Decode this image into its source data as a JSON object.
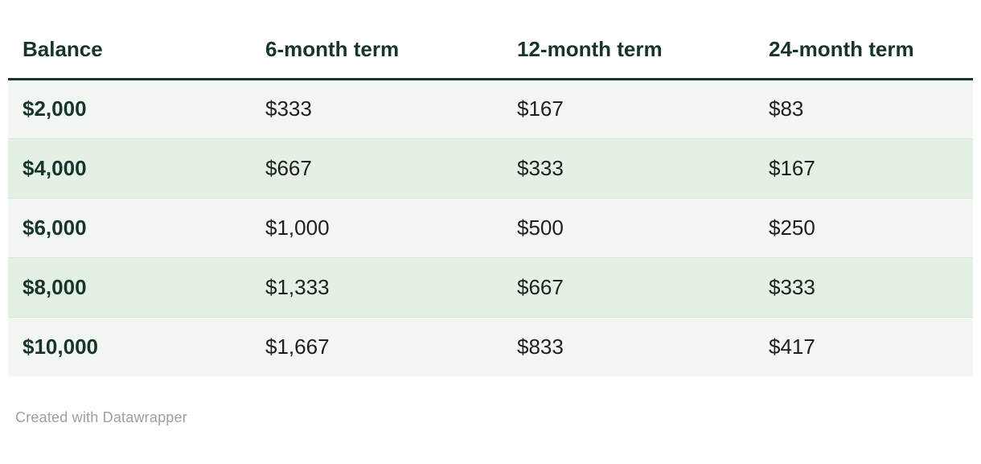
{
  "chart_data": {
    "type": "table",
    "title": "",
    "columns": [
      "Balance",
      "6-month term",
      "12-month term",
      "24-month term"
    ],
    "rows": [
      {
        "balance": "$2,000",
        "values": [
          "$333",
          "$167",
          "$83"
        ]
      },
      {
        "balance": "$4,000",
        "values": [
          "$667",
          "$333",
          "$167"
        ]
      },
      {
        "balance": "$6,000",
        "values": [
          "$1,000",
          "$500",
          "$250"
        ]
      },
      {
        "balance": "$8,000",
        "values": [
          "$1,333",
          "$667",
          "$333"
        ]
      },
      {
        "balance": "$10,000",
        "values": [
          "$1,667",
          "$833",
          "$417"
        ]
      }
    ],
    "layout_hints": {
      "striped_rows": true,
      "first_column_bold": true,
      "header_rule": "thick dark green line under header"
    }
  },
  "footer": {
    "credit": "Created with Datawrapper"
  },
  "colors": {
    "header_text": "#17352d",
    "header_rule": "#17352d",
    "row_odd_bg": "#f2f7f1",
    "row_even_bg": "#e3f0e3",
    "row_divider": "#d9e4d9",
    "body_text": "#1f1f1f",
    "balance_text": "#17352d",
    "credit_text": "#9e9e9e",
    "page_bg": "#ffffff"
  }
}
